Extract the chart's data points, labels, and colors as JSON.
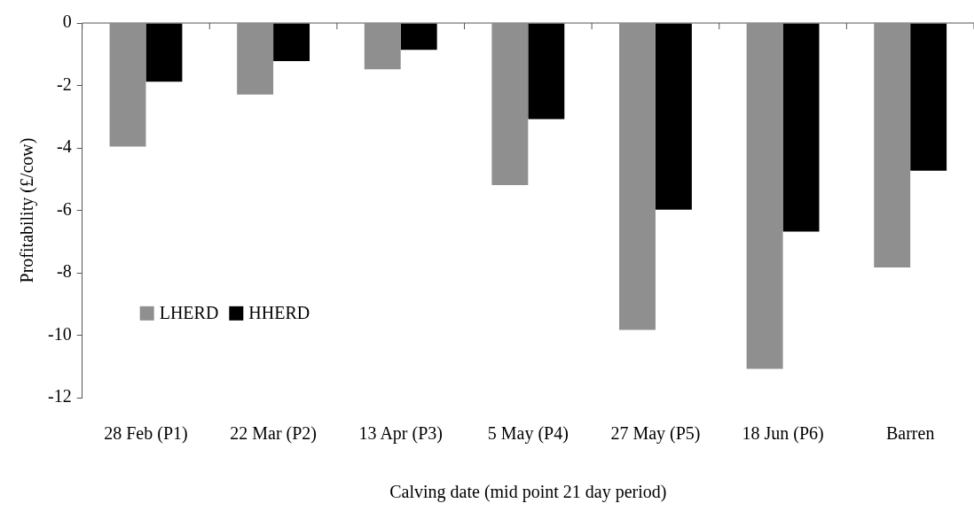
{
  "chart_data": {
    "type": "bar",
    "xlabel": "Calving date (mid point 21 day period)",
    "ylabel": "Profitability (£/cow)",
    "categories": [
      "28 Feb (P1)",
      "22 Mar (P2)",
      "13 Apr (P3)",
      "5 May (P4)",
      "27 May (P5)",
      "18 Jun (P6)",
      "Barren"
    ],
    "series": [
      {
        "name": "LHERD",
        "color": "#8f8f8f",
        "values": [
          -3.96,
          -2.29,
          -1.48,
          -5.19,
          -9.83,
          -11.08,
          -7.83
        ]
      },
      {
        "name": "HHERD",
        "color": "#000000",
        "values": [
          -1.88,
          -1.22,
          -0.86,
          -3.08,
          -5.98,
          -6.68,
          -4.73
        ]
      }
    ],
    "ylim": [
      -12,
      0
    ],
    "yticks": [
      -12,
      -10,
      -8,
      -6,
      -4,
      -2,
      0
    ],
    "grid": false,
    "legend": "bottom left"
  }
}
